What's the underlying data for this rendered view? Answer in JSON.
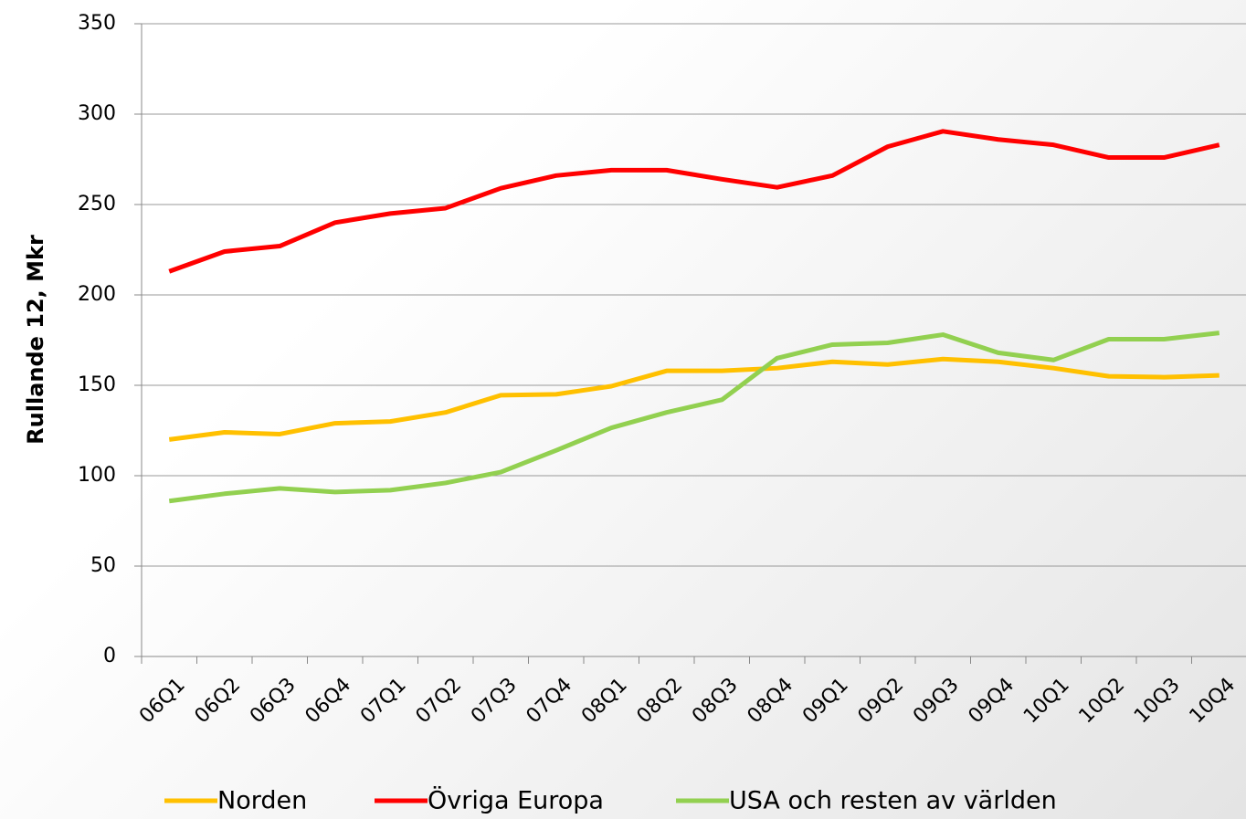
{
  "chart_data": {
    "type": "line",
    "y_label": "Rullande 12, Mkr",
    "categories": [
      "06Q1",
      "06Q2",
      "06Q3",
      "06Q4",
      "07Q1",
      "07Q2",
      "07Q3",
      "07Q4",
      "08Q1",
      "08Q2",
      "08Q3",
      "08Q4",
      "09Q1",
      "09Q2",
      "09Q3",
      "09Q4",
      "10Q1",
      "10Q2",
      "10Q3",
      "10Q4"
    ],
    "series": [
      {
        "name": "Norden",
        "color": "#ffc000",
        "values": [
          120,
          124,
          123,
          129,
          130,
          135,
          144.5,
          145,
          149.5,
          158,
          158,
          159.5,
          163,
          161.5,
          164.5,
          163,
          159.5,
          155,
          154.5,
          155.5
        ]
      },
      {
        "name": "Övriga Europa",
        "color": "#ff0000",
        "values": [
          213,
          224,
          227,
          240,
          245,
          248,
          259,
          266,
          269,
          269,
          264,
          259.5,
          266,
          282,
          290.5,
          286,
          283,
          276,
          276,
          283
        ]
      },
      {
        "name": "USA och resten av världen",
        "color": "#92d050",
        "values": [
          86,
          90,
          93,
          91,
          92,
          96,
          102,
          114,
          126.5,
          135,
          142,
          165,
          172.5,
          173.5,
          178,
          168,
          164,
          175.5,
          175.5,
          179
        ]
      }
    ],
    "ylim": [
      0,
      350
    ],
    "yticks": [
      0,
      50,
      100,
      150,
      200,
      250,
      300,
      350
    ],
    "grid": true,
    "legend": "bottom"
  }
}
